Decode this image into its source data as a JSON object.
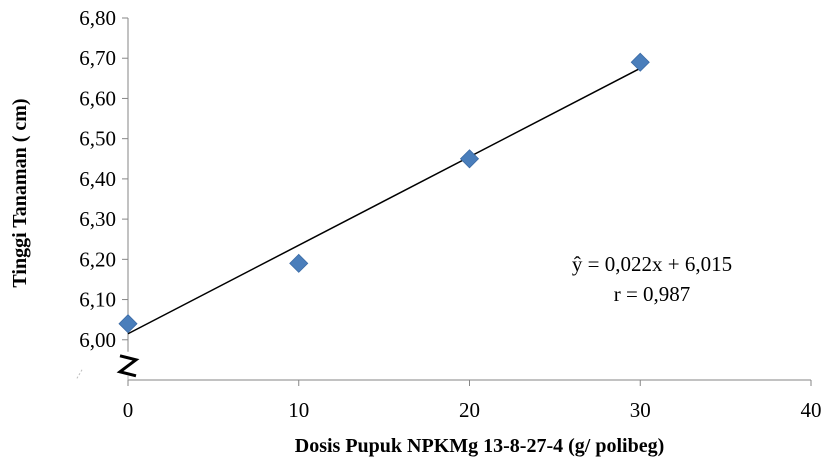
{
  "chart_data": {
    "type": "scatter",
    "title": "",
    "xlabel": "Dosis Pupuk NPKMg 13-8-27-4  (g/ polibeg)",
    "ylabel": "Tinggi Tanaman ( cm)",
    "xlim": [
      0,
      40
    ],
    "ylim": [
      5.9,
      6.8
    ],
    "x_ticks": [
      0,
      10,
      20,
      30,
      40
    ],
    "x_tick_labels": [
      "0",
      "10",
      "20",
      "30",
      "40"
    ],
    "y_ticks": [
      6.0,
      6.1,
      6.2,
      6.3,
      6.4,
      6.5,
      6.6,
      6.7,
      6.8
    ],
    "y_tick_labels": [
      "6,00",
      "6,10",
      "6,20",
      "6,30",
      "6,40",
      "6,50",
      "6,60",
      "6,70",
      "6,80"
    ],
    "y_axis_break": true,
    "grid": false,
    "legend": "none",
    "series": [
      {
        "marker": "diamond",
        "color": "#4a7ebb",
        "points": [
          {
            "x": 0,
            "y": 6.04
          },
          {
            "x": 10,
            "y": 6.19
          },
          {
            "x": 20,
            "y": 6.45
          },
          {
            "x": 30,
            "y": 6.69
          }
        ]
      }
    ],
    "trendline": {
      "type": "linear",
      "slope": 0.022,
      "intercept": 6.015,
      "x_range": [
        0,
        30
      ],
      "color": "#000000"
    },
    "annotations": [
      "ŷ = 0,022x + 6,015",
      "r = 0,987"
    ]
  }
}
